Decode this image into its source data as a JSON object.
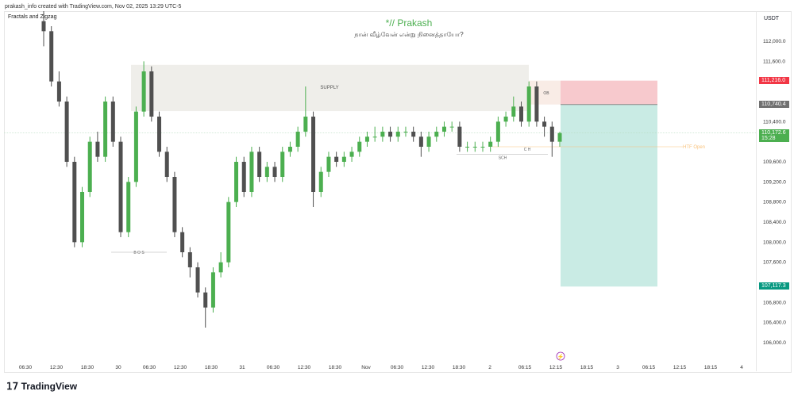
{
  "header": {
    "text": "prakash_info created with TradingView.com, Nov 02, 2025 13:29 UTC-5"
  },
  "indicator": {
    "label": "Fractals and Zigzag"
  },
  "chart_title": "*// Prakash",
  "chart_subtitle": "நான் வீழ்வேன் என்று நினைத்தாயோ?",
  "currency": "USDT",
  "brand": "TradingView",
  "colors": {
    "up": "#4caf50",
    "down": "#505050",
    "supply": "#efeeea",
    "ob": "#f9ece6",
    "stop": "#f7c9cd",
    "target": "#c9ebe4",
    "htf": "#f9c27b"
  },
  "chart_data": {
    "type": "candlestick",
    "ylim": [
      105800,
      112800
    ],
    "y_ticks": [
      112000,
      111600,
      110400,
      109600,
      109200,
      108800,
      108400,
      108000,
      107600,
      106800,
      106400,
      106000
    ],
    "y_tick_labels": [
      "112,000.0",
      "111,600.0",
      "110,400.0",
      "109,600.0",
      "109,200.0",
      "108,800.0",
      "108,400.0",
      "108,000.0",
      "107,600.0",
      "106,800.0",
      "106,400.0",
      "106,000.0"
    ],
    "x_tick_labels": [
      "06:30",
      "12:30",
      "18:30",
      "30",
      "06:30",
      "12:30",
      "18:30",
      "31",
      "06:30",
      "12:30",
      "18:30",
      "Nov",
      "06:30",
      "12:30",
      "18:30",
      "2",
      "06:15",
      "12:15",
      "18:15",
      "3",
      "06:15",
      "12:15",
      "18:15",
      "4"
    ],
    "candles": [
      [
        112400,
        112600,
        111900,
        112200
      ],
      [
        112200,
        112300,
        111100,
        111200
      ],
      [
        111200,
        111400,
        110700,
        110800
      ],
      [
        110800,
        110900,
        109500,
        109600
      ],
      [
        109600,
        109700,
        107900,
        108000
      ],
      [
        108000,
        109100,
        107900,
        109000
      ],
      [
        109000,
        110100,
        108900,
        110000
      ],
      [
        110000,
        110200,
        109600,
        109700
      ],
      [
        109700,
        110900,
        109600,
        110800
      ],
      [
        110800,
        110900,
        109900,
        110000
      ],
      [
        110000,
        110100,
        108100,
        108200
      ],
      [
        108200,
        109300,
        108100,
        109200
      ],
      [
        109200,
        110700,
        109100,
        110600
      ],
      [
        110600,
        111600,
        110500,
        111400
      ],
      [
        111400,
        111500,
        110400,
        110500
      ],
      [
        110500,
        110600,
        109700,
        109800
      ],
      [
        109800,
        109900,
        109200,
        109300
      ],
      [
        109300,
        109400,
        108100,
        108200
      ],
      [
        108200,
        108300,
        107700,
        107800
      ],
      [
        107800,
        107900,
        107300,
        107500
      ],
      [
        107500,
        107600,
        106900,
        107000
      ],
      [
        107000,
        107100,
        106300,
        106700
      ],
      [
        106700,
        107500,
        106600,
        107400
      ],
      [
        107400,
        107800,
        107300,
        107600
      ],
      [
        107600,
        108900,
        107500,
        108800
      ],
      [
        108800,
        109700,
        108700,
        109600
      ],
      [
        109600,
        109700,
        108900,
        109000
      ],
      [
        109000,
        109900,
        108900,
        109800
      ],
      [
        109800,
        109900,
        109200,
        109300
      ],
      [
        109300,
        109600,
        109200,
        109500
      ],
      [
        109500,
        109600,
        109200,
        109300
      ],
      [
        109300,
        109900,
        109200,
        109800
      ],
      [
        109800,
        110000,
        109700,
        109900
      ],
      [
        109900,
        110300,
        109800,
        110200
      ],
      [
        110200,
        111100,
        110100,
        110500
      ],
      [
        110500,
        110600,
        108700,
        109000
      ],
      [
        109000,
        109500,
        108900,
        109400
      ],
      [
        109400,
        109800,
        109300,
        109700
      ],
      [
        109700,
        109800,
        109500,
        109600
      ],
      [
        109600,
        109800,
        109500,
        109700
      ],
      [
        109700,
        109900,
        109600,
        109800
      ],
      [
        109800,
        110100,
        109700,
        110000
      ],
      [
        110000,
        110200,
        109900,
        110100
      ],
      [
        110100,
        110300,
        110000,
        110100
      ],
      [
        110100,
        110300,
        110000,
        110200
      ],
      [
        110200,
        110300,
        110000,
        110100
      ],
      [
        110100,
        110300,
        110000,
        110200
      ],
      [
        110200,
        110300,
        110100,
        110200
      ],
      [
        110200,
        110300,
        110000,
        110100
      ],
      [
        110100,
        110200,
        109700,
        109900
      ],
      [
        109900,
        110200,
        109800,
        110100
      ],
      [
        110100,
        110300,
        110000,
        110200
      ],
      [
        110200,
        110400,
        110100,
        110300
      ],
      [
        110300,
        110400,
        110200,
        110300
      ],
      [
        110300,
        110400,
        109800,
        109900
      ],
      [
        109900,
        110000,
        109800,
        109900
      ],
      [
        109900,
        110000,
        109800,
        109900
      ],
      [
        109900,
        110000,
        109800,
        109900
      ],
      [
        109900,
        110100,
        109800,
        110000
      ],
      [
        110000,
        110500,
        109900,
        110400
      ],
      [
        110400,
        110600,
        110300,
        110500
      ],
      [
        110500,
        110900,
        110400,
        110700
      ],
      [
        110700,
        110800,
        110300,
        110400
      ],
      [
        110400,
        111200,
        110300,
        111100
      ],
      [
        111100,
        111200,
        110300,
        110400
      ],
      [
        110400,
        110500,
        110100,
        110300
      ],
      [
        110300,
        110400,
        109700,
        110000
      ],
      [
        110000,
        110200,
        109900,
        110172.6
      ]
    ],
    "zones": {
      "supply": {
        "label": "SUPPLY",
        "top": 111530,
        "bottom": 110610
      },
      "ob": {
        "label": "OB",
        "top": 111216,
        "bottom": 110740.4
      }
    },
    "position": {
      "entry": 110740.4,
      "stop": 111216.0,
      "target": 107117.3
    },
    "annotations": {
      "bos": "B O S",
      "bos_price": 107800,
      "sch": "SCH",
      "sch_price": 109750,
      "ch": "C H",
      "htf_open": "HTF Open",
      "htf_price": 109900
    },
    "price_labels": {
      "stop": "111,216.0",
      "entry": "110,740.4",
      "current": "110,172.6",
      "countdown": "15:28",
      "target": "107,117.3"
    }
  }
}
